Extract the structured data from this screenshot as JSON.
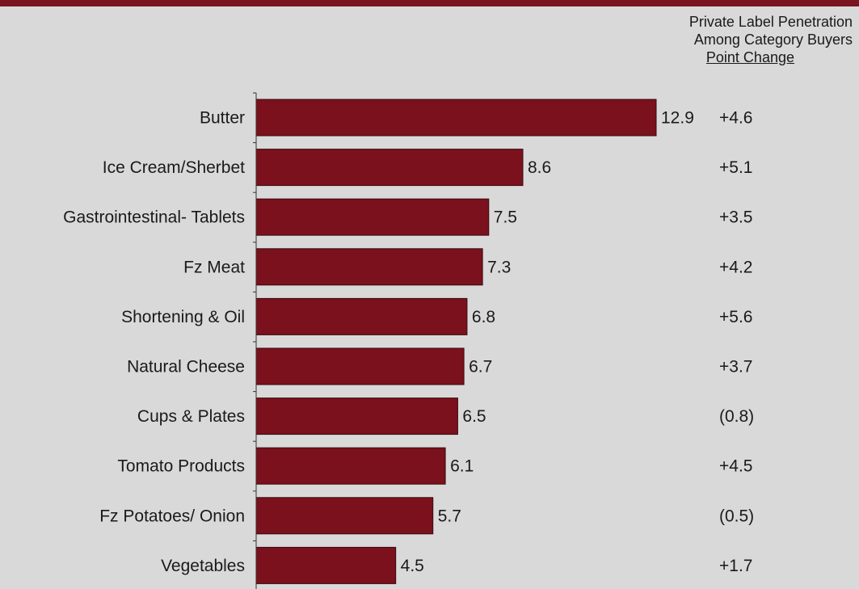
{
  "header": {
    "line1": "Private Label Penetration",
    "line2": "Among Category Buyers",
    "line3": "Point Change"
  },
  "colors": {
    "bar": "#7a111c",
    "background": "#d9d9d9",
    "top_bar": "#7a1520"
  },
  "chart_data": {
    "type": "bar",
    "orientation": "horizontal",
    "categories": [
      "Butter",
      "Ice Cream/Sherbet",
      "Gastrointestinal- Tablets",
      "Fz Meat",
      "Shortening & Oil",
      "Natural Cheese",
      "Cups & Plates",
      "Tomato Products",
      "Fz Potatoes/ Onion",
      "Vegetables"
    ],
    "values": [
      12.9,
      8.6,
      7.5,
      7.3,
      6.8,
      6.7,
      6.5,
      6.1,
      5.7,
      4.5
    ],
    "value_labels": [
      "12.9",
      "8.6",
      "7.5",
      "7.3",
      "6.8",
      "6.7",
      "6.5",
      "6.1",
      "5.7",
      "4.5"
    ],
    "point_change": [
      "+4.6",
      "+5.1",
      "+3.5",
      "+4.2",
      "+5.6",
      "+3.7",
      "(0.8)",
      "+4.5",
      "(0.5)",
      "+1.7"
    ],
    "xlim": [
      0,
      13
    ],
    "grid": false,
    "legend": "none"
  }
}
